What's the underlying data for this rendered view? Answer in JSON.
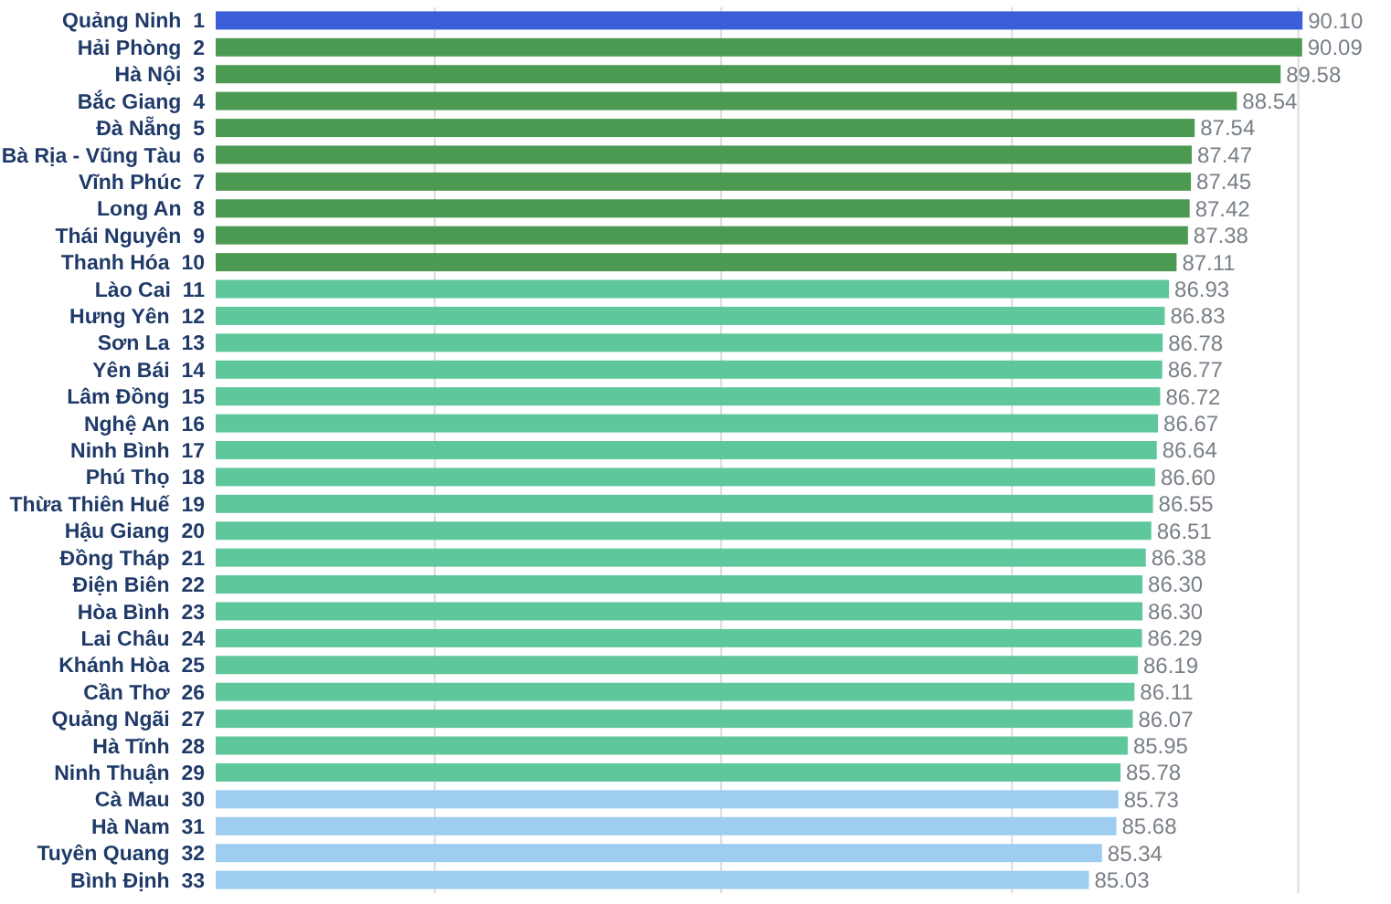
{
  "chart_data": {
    "type": "bar",
    "orientation": "horizontal",
    "categories": [
      "Quảng Ninh  1",
      "Hải Phòng  2",
      "Hà Nội  3",
      "Bắc Giang  4",
      "Đà Nẵng  5",
      "Bà Rịa - Vũng Tàu  6",
      "Vĩnh Phúc  7",
      "Long An  8",
      "Thái Nguyên  9",
      "Thanh Hóa  10",
      "Lào Cai  11",
      "Hưng Yên  12",
      "Sơn La  13",
      "Yên Bái  14",
      "Lâm Đồng  15",
      "Nghệ An  16",
      "Ninh Bình  17",
      "Phú Thọ  18",
      "Thừa Thiên Huế  19",
      "Hậu Giang  20",
      "Đồng Tháp  21",
      "Điện Biên  22",
      "Hòa Bình  23",
      "Lai Châu  24",
      "Khánh Hòa  25",
      "Cần Thơ  26",
      "Quảng Ngãi  27",
      "Hà Tĩnh  28",
      "Ninh Thuận  29",
      "Cà Mau  30",
      "Hà Nam  31",
      "Tuyên Quang  32",
      "Bình Định  33"
    ],
    "values": [
      90.1,
      90.09,
      89.58,
      88.54,
      87.54,
      87.47,
      87.45,
      87.42,
      87.38,
      87.11,
      86.93,
      86.83,
      86.78,
      86.77,
      86.72,
      86.67,
      86.64,
      86.6,
      86.55,
      86.51,
      86.38,
      86.3,
      86.3,
      86.29,
      86.19,
      86.11,
      86.07,
      85.95,
      85.78,
      85.73,
      85.68,
      85.34,
      85.03
    ],
    "value_labels": [
      "90.10",
      "90.09",
      "89.58",
      "88.54",
      "87.54",
      "87.47",
      "87.45",
      "87.42",
      "87.38",
      "87.11",
      "86.93",
      "86.83",
      "86.78",
      "86.77",
      "86.72",
      "86.67",
      "86.64",
      "86.60",
      "86.55",
      "86.51",
      "86.38",
      "86.30",
      "86.30",
      "86.29",
      "86.19",
      "86.11",
      "86.07",
      "85.95",
      "85.78",
      "85.73",
      "85.68",
      "85.34",
      "85.03"
    ],
    "colors": [
      "#3a5fd8",
      "#4c9a52",
      "#4c9a52",
      "#4c9a52",
      "#4c9a52",
      "#4c9a52",
      "#4c9a52",
      "#4c9a52",
      "#4c9a52",
      "#4c9a52",
      "#5fc79c",
      "#5fc79c",
      "#5fc79c",
      "#5fc79c",
      "#5fc79c",
      "#5fc79c",
      "#5fc79c",
      "#5fc79c",
      "#5fc79c",
      "#5fc79c",
      "#5fc79c",
      "#5fc79c",
      "#5fc79c",
      "#5fc79c",
      "#5fc79c",
      "#5fc79c",
      "#5fc79c",
      "#5fc79c",
      "#5fc79c",
      "#9fcdf0",
      "#9fcdf0",
      "#9fcdf0",
      "#9fcdf0"
    ],
    "xlim": [
      64.3,
      92.2
    ],
    "xticks": [
      {
        "value": 69.5,
        "label": null
      },
      {
        "value": 76.3,
        "label": null
      },
      {
        "value": 83.2,
        "label": null
      },
      {
        "value": 90.0,
        "label": null
      }
    ],
    "grid": "x",
    "tick_labels": "y"
  }
}
